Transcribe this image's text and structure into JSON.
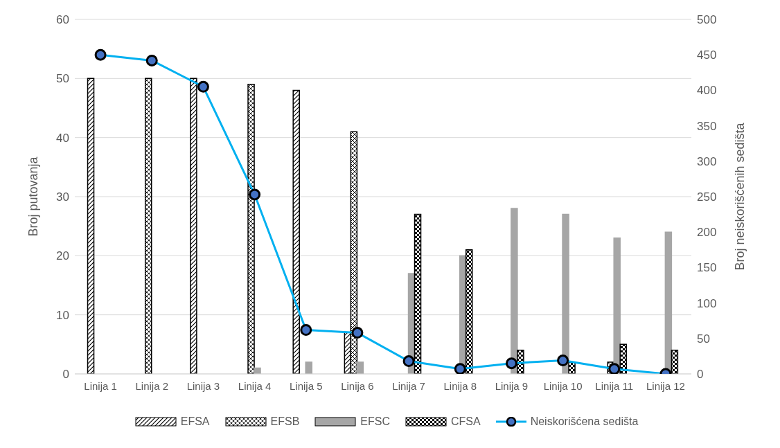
{
  "chart_data": {
    "type": "bar",
    "ylabel": "Broj putovanja",
    "y2label": "Broj neiskorišćenih sedišta",
    "categories": [
      "Linija 1",
      "Linija 2",
      "Linija 3",
      "Linija 4",
      "Linija 5",
      "Linija 6",
      "Linija 7",
      "Linija 8",
      "Linija 9",
      "Linija 10",
      "Linija 11",
      "Linija 12"
    ],
    "series": [
      {
        "name": "EFSA",
        "color": "#000000",
        "values": [
          50,
          0,
          50,
          0,
          48,
          7,
          0,
          0,
          0,
          0,
          0,
          0
        ]
      },
      {
        "name": "EFSB",
        "color": "#000000",
        "values": [
          0,
          50,
          0,
          49,
          0,
          41,
          0,
          0,
          0,
          0,
          2,
          0
        ]
      },
      {
        "name": "EFSC",
        "color": "#a6a6a6",
        "values": [
          0,
          0,
          0,
          1,
          2,
          2,
          17,
          20,
          28,
          27,
          23,
          24
        ]
      },
      {
        "name": "CFSA",
        "color": "#000000",
        "values": [
          0,
          0,
          0,
          0,
          0,
          0,
          27,
          21,
          4,
          2,
          5,
          4
        ]
      },
      {
        "name": "Neiskorišćena sedišta",
        "type": "line",
        "axis": "y2",
        "color": "#00b0f0",
        "values": [
          450,
          442,
          405,
          253,
          62,
          58,
          18,
          7,
          15,
          19,
          7,
          0
        ]
      }
    ],
    "ylim": [
      0,
      60
    ],
    "yticks": [
      0,
      10,
      20,
      30,
      40,
      50,
      60
    ],
    "y2lim": [
      0,
      500
    ],
    "y2ticks": [
      0,
      50,
      100,
      150,
      200,
      250,
      300,
      350,
      400,
      450,
      500
    ],
    "grid": "y",
    "legend": "bottom",
    "marker": "circle"
  }
}
